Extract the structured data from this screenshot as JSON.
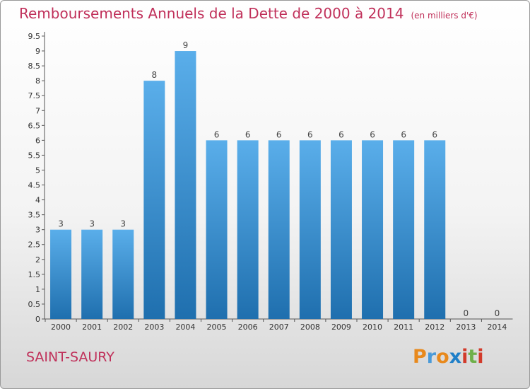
{
  "title": "Remboursements Annuels de la Dette de 2000 à 2014",
  "unit": "(en milliers d'€)",
  "location": "SAINT-SAURY",
  "logo": {
    "letters": [
      "P",
      "r",
      "o",
      "x",
      "i",
      "t",
      "i"
    ],
    "colors": [
      "#e8891c",
      "#4a9ad8",
      "#e8891c",
      "#1f7fc8",
      "#d23a2a",
      "#6fb04a",
      "#d23a2a"
    ]
  },
  "colors": {
    "title": "#c0305a",
    "bar_top": "#5aaeea",
    "bar_bottom": "#1f6fae"
  },
  "chart_data": {
    "type": "bar",
    "categories": [
      "2000",
      "2001",
      "2002",
      "2003",
      "2004",
      "2005",
      "2006",
      "2007",
      "2008",
      "2009",
      "2010",
      "2011",
      "2012",
      "2013",
      "2014"
    ],
    "values": [
      3,
      3,
      3,
      8,
      9,
      6,
      6,
      6,
      6,
      6,
      6,
      6,
      6,
      0,
      0
    ],
    "ylim": [
      0,
      9.5
    ],
    "yticks": [
      "0",
      "0.5",
      "1",
      "1.5",
      "2",
      "2.5",
      "3",
      "3.5",
      "4",
      "4.5",
      "5",
      "5.5",
      "6",
      "6.5",
      "7",
      "7.5",
      "8",
      "8.5",
      "9",
      "9.5"
    ],
    "grid": false
  }
}
